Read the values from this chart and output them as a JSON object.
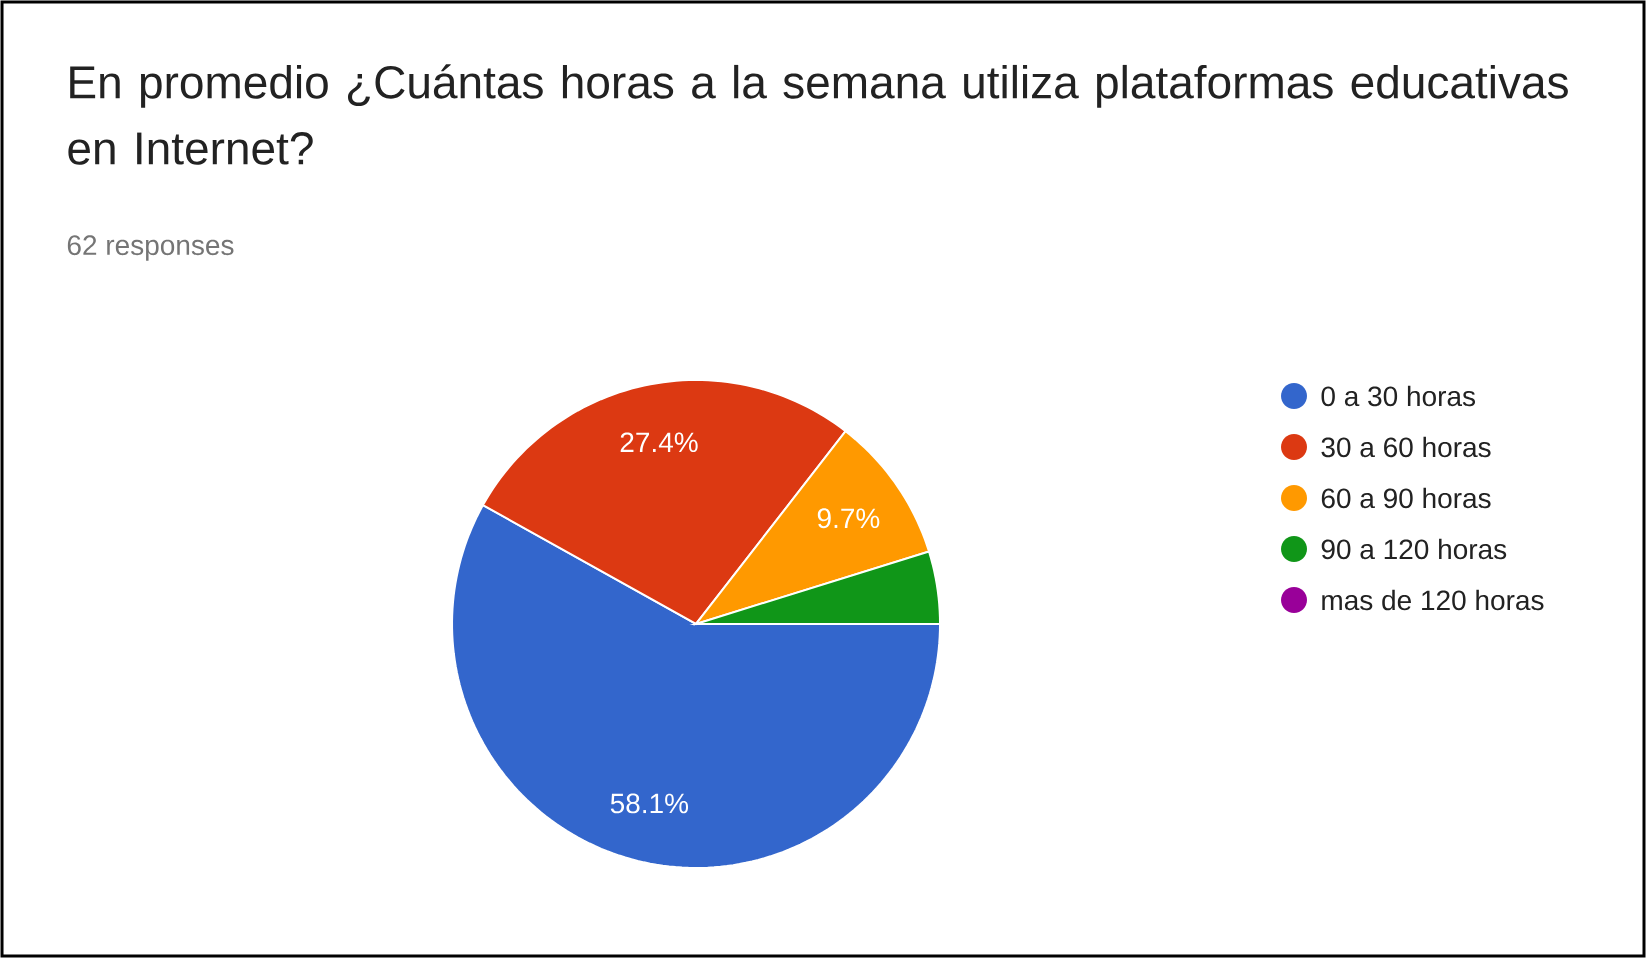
{
  "chart_data": {
    "type": "pie",
    "title": "En promedio ¿Cuántas horas a la semana utiliza plataformas educativas en Internet?",
    "subtitle": "62 responses",
    "categories": [
      "0 a 30 horas",
      "30 a 60 horas",
      "60 a 90 horas",
      "90 a 120 horas",
      "mas de 120 horas"
    ],
    "values": [
      58.1,
      27.4,
      9.7,
      4.8,
      0
    ],
    "colors": [
      "#3366cc",
      "#dc3912",
      "#ff9900",
      "#109618",
      "#990099"
    ],
    "value_labels": [
      "58.1%",
      "27.4%",
      "9.7%",
      null,
      null
    ],
    "legend": "right"
  }
}
